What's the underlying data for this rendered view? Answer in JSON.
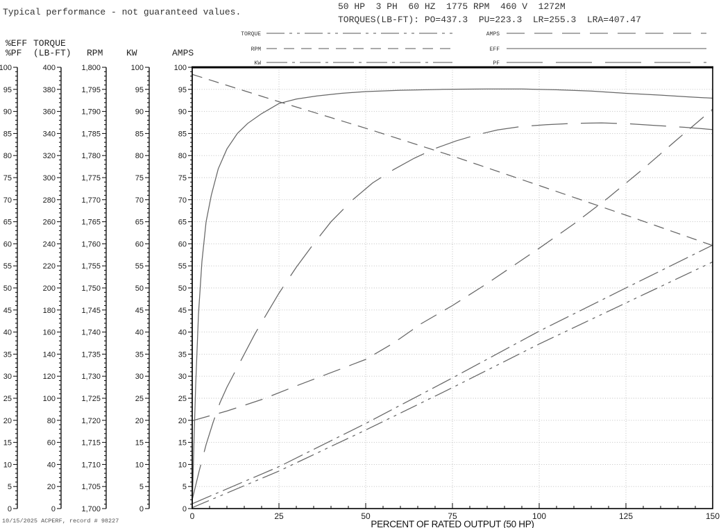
{
  "header": {
    "disclaimer": "Typical performance - not guaranteed values.",
    "nameplate": "50 HP  3 PH  60 HZ  1775 RPM  460 V  1272M",
    "torques": "TORQUES(LB-FT): PO=437.3  PU=223.3  LR=255.3  LRA=407.47"
  },
  "footer": {
    "record": "10/15/2025 ACPERF, record # 98227"
  },
  "chart_data": {
    "type": "line",
    "title": "",
    "xlabel": "PERCENT OF RATED OUTPUT (50 HP)",
    "xlim": [
      0,
      150
    ],
    "x_major_ticks": [
      0,
      25,
      50,
      75,
      100,
      125,
      150
    ],
    "x_minor_step": 5,
    "grid": {
      "horizontal_step_axis_units": 5,
      "vertical_step_pct": 25,
      "style": "dotted"
    },
    "y_axes": [
      {
        "id": "eff-pf",
        "title_lines": [
          "%EFF",
          "%PF"
        ],
        "range": [
          0,
          100
        ],
        "tick_labels": [
          "100",
          "95",
          "90",
          "85",
          "80",
          "75",
          "70",
          "65",
          "60",
          "55",
          "50",
          "45",
          "40",
          "35",
          "30",
          "25",
          "20",
          "15",
          "10",
          "5",
          "0"
        ]
      },
      {
        "id": "torque",
        "title_lines": [
          "TORQUE",
          "(LB-FT)"
        ],
        "range": [
          0,
          400
        ],
        "tick_labels": [
          "400",
          "380",
          "360",
          "340",
          "320",
          "300",
          "280",
          "260",
          "240",
          "220",
          "200",
          "180",
          "160",
          "140",
          "120",
          "100",
          "80",
          "60",
          "40",
          "20",
          "0"
        ]
      },
      {
        "id": "rpm",
        "title_lines": [
          "RPM"
        ],
        "range": [
          1700,
          1800
        ],
        "tick_labels": [
          "1,800",
          "1,795",
          "1,790",
          "1,785",
          "1,780",
          "1,775",
          "1,770",
          "1,765",
          "1,760",
          "1,755",
          "1,750",
          "1,745",
          "1,740",
          "1,735",
          "1,730",
          "1,725",
          "1,720",
          "1,715",
          "1,710",
          "1,705",
          "1,700"
        ]
      },
      {
        "id": "kw",
        "title_lines": [
          "KW"
        ],
        "range": [
          0,
          100
        ],
        "tick_labels": [
          "100",
          "95",
          "90",
          "85",
          "80",
          "75",
          "70",
          "65",
          "60",
          "55",
          "50",
          "45",
          "40",
          "35",
          "30",
          "25",
          "20",
          "15",
          "10",
          "5",
          "0"
        ]
      },
      {
        "id": "amps",
        "title_lines": [
          "AMPS"
        ],
        "range": [
          0,
          100
        ],
        "tick_labels": [
          "100",
          "95",
          "90",
          "85",
          "80",
          "75",
          "70",
          "65",
          "60",
          "55",
          "50",
          "45",
          "40",
          "35",
          "30",
          "25",
          "20",
          "15",
          "10",
          "5",
          "0"
        ]
      }
    ],
    "series": [
      {
        "name": "TORQUE",
        "axis": "torque",
        "dash": "26 7 4 7 4 7",
        "points_pct": [
          [
            0,
            0.2
          ],
          [
            25,
            8.5
          ],
          [
            50,
            17.8
          ],
          [
            75,
            27.4
          ],
          [
            100,
            37.3
          ],
          [
            125,
            46.6
          ],
          [
            150,
            55.9
          ]
        ]
      },
      {
        "name": "RPM",
        "axis": "rpm",
        "dash": "15 10",
        "points_pct": [
          [
            0,
            98.4
          ],
          [
            25,
            92.2
          ],
          [
            50,
            86.2
          ],
          [
            75,
            79.9
          ],
          [
            100,
            73.2
          ],
          [
            125,
            66.5
          ],
          [
            150,
            59.6
          ]
        ]
      },
      {
        "name": "KW",
        "axis": "kw",
        "dash": "30 7 4 7",
        "points_pct": [
          [
            0,
            1.1
          ],
          [
            25,
            9.5
          ],
          [
            50,
            19.3
          ],
          [
            75,
            29.6
          ],
          [
            100,
            40.2
          ],
          [
            125,
            50.0
          ],
          [
            150,
            59.7
          ]
        ]
      },
      {
        "name": "AMPS",
        "axis": "amps",
        "dash": "26 14",
        "points_pct": [
          [
            0,
            19.9
          ],
          [
            10,
            22.1
          ],
          [
            20,
            24.7
          ],
          [
            30,
            27.8
          ],
          [
            40,
            30.8
          ],
          [
            50,
            33.8
          ],
          [
            58,
            37.5
          ],
          [
            66,
            41.9
          ],
          [
            75,
            46.0
          ],
          [
            85,
            51.0
          ],
          [
            100,
            59.0
          ],
          [
            110,
            64.5
          ],
          [
            120,
            70.5
          ],
          [
            130,
            77.0
          ],
          [
            140,
            83.8
          ],
          [
            150,
            90.5
          ]
        ]
      },
      {
        "name": "EFF",
        "axis": "eff-pf",
        "dash": "solid",
        "points_pct": [
          [
            0,
            0
          ],
          [
            0.5,
            15
          ],
          [
            1,
            28
          ],
          [
            1.8,
            44
          ],
          [
            2.8,
            56
          ],
          [
            4,
            65
          ],
          [
            5.5,
            71
          ],
          [
            7.5,
            77
          ],
          [
            10,
            81.5
          ],
          [
            13,
            85
          ],
          [
            16,
            87.3
          ],
          [
            20,
            89.5
          ],
          [
            25,
            91.8
          ],
          [
            30,
            92.8
          ],
          [
            36,
            93.5
          ],
          [
            43,
            94.1
          ],
          [
            50,
            94.5
          ],
          [
            60,
            94.8
          ],
          [
            72,
            95.0
          ],
          [
            85,
            95.1
          ],
          [
            95,
            95.1
          ],
          [
            105,
            94.9
          ],
          [
            115,
            94.6
          ],
          [
            125,
            94.1
          ],
          [
            135,
            93.7
          ],
          [
            143,
            93.3
          ],
          [
            150,
            93.0
          ]
        ]
      },
      {
        "name": "PF",
        "axis": "eff-pf",
        "dash": "52 19",
        "points_pct": [
          [
            0,
            2
          ],
          [
            2,
            8.5
          ],
          [
            4,
            14.5
          ],
          [
            6,
            19.5
          ],
          [
            8,
            24
          ],
          [
            10,
            27.5
          ],
          [
            12,
            30.5
          ],
          [
            15,
            35
          ],
          [
            18,
            39.5
          ],
          [
            21,
            43.5
          ],
          [
            25,
            48.8
          ],
          [
            30,
            54.7
          ],
          [
            35,
            60
          ],
          [
            40,
            65
          ],
          [
            46,
            69.8
          ],
          [
            52,
            73.8
          ],
          [
            58,
            76.8
          ],
          [
            64,
            79.4
          ],
          [
            70,
            81.6
          ],
          [
            76,
            83.3
          ],
          [
            82,
            84.7
          ],
          [
            88,
            85.8
          ],
          [
            95,
            86.6
          ],
          [
            102,
            87.0
          ],
          [
            110,
            87.3
          ],
          [
            118,
            87.4
          ],
          [
            126,
            87.2
          ],
          [
            134,
            86.8
          ],
          [
            142,
            86.4
          ],
          [
            150,
            85.9
          ]
        ]
      }
    ],
    "legend": {
      "left_column": [
        "TORQUE",
        "RPM",
        "KW"
      ],
      "right_column": [
        "AMPS",
        "EFF",
        "PF"
      ]
    }
  }
}
